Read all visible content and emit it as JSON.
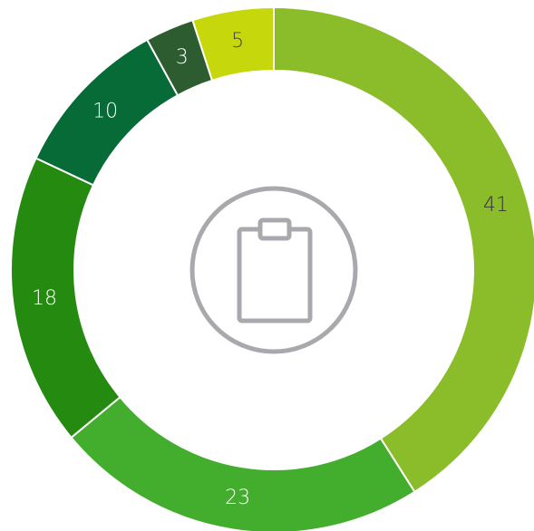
{
  "chart_data": {
    "type": "donut",
    "values": [
      41,
      23,
      18,
      10,
      3,
      5
    ],
    "colors": [
      "#8bbd2b",
      "#43ad2d",
      "#258a10",
      "#066b37",
      "#2c5c30",
      "#c6d70b"
    ]
  }
}
